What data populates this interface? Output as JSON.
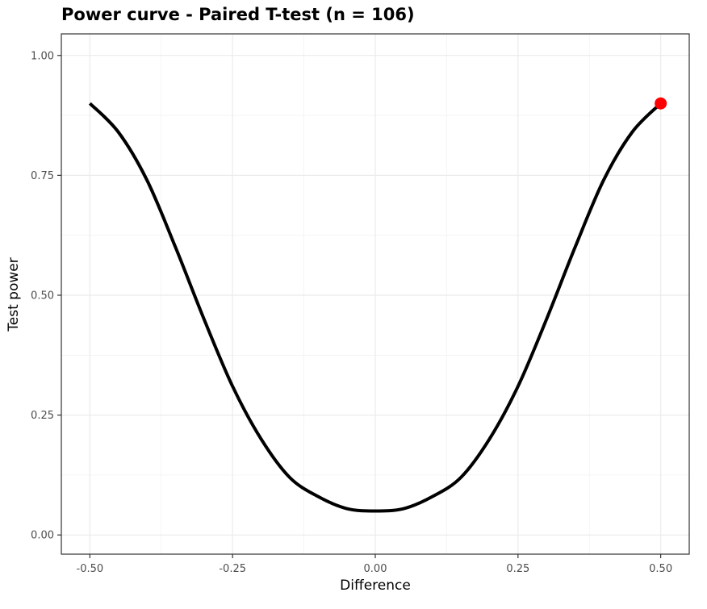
{
  "chart_data": {
    "type": "line",
    "title": "Power curve - Paired T-test (n =  106)",
    "xlabel": "Difference",
    "ylabel": "Test power",
    "xlim": [
      -0.55,
      0.55
    ],
    "ylim": [
      -0.04,
      1.045
    ],
    "x_ticks": [
      -0.5,
      -0.25,
      0,
      0.25,
      0.5
    ],
    "x_tick_labels": [
      "-0.50",
      "-0.25",
      "0.00",
      "0.25",
      "0.50"
    ],
    "y_ticks": [
      0,
      0.25,
      0.5,
      0.75,
      1.0
    ],
    "y_tick_labels": [
      "0.00",
      "0.25",
      "0.50",
      "0.75",
      "1.00"
    ],
    "grid": true,
    "series": [
      {
        "color": "#000000",
        "x": [
          -0.5,
          -0.45,
          -0.4,
          -0.35,
          -0.3,
          -0.25,
          -0.2,
          -0.15,
          -0.1,
          -0.05,
          0,
          0.05,
          0.1,
          0.15,
          0.2,
          0.25,
          0.3,
          0.35,
          0.4,
          0.45,
          0.5
        ],
        "y": [
          0.9,
          0.84,
          0.74,
          0.6,
          0.45,
          0.31,
          0.2,
          0.12,
          0.08,
          0.055,
          0.05,
          0.055,
          0.08,
          0.12,
          0.2,
          0.31,
          0.45,
          0.6,
          0.74,
          0.84,
          0.9
        ]
      }
    ],
    "highlight_point": {
      "x": 0.5,
      "y": 0.9,
      "color": "#ff0000"
    }
  }
}
